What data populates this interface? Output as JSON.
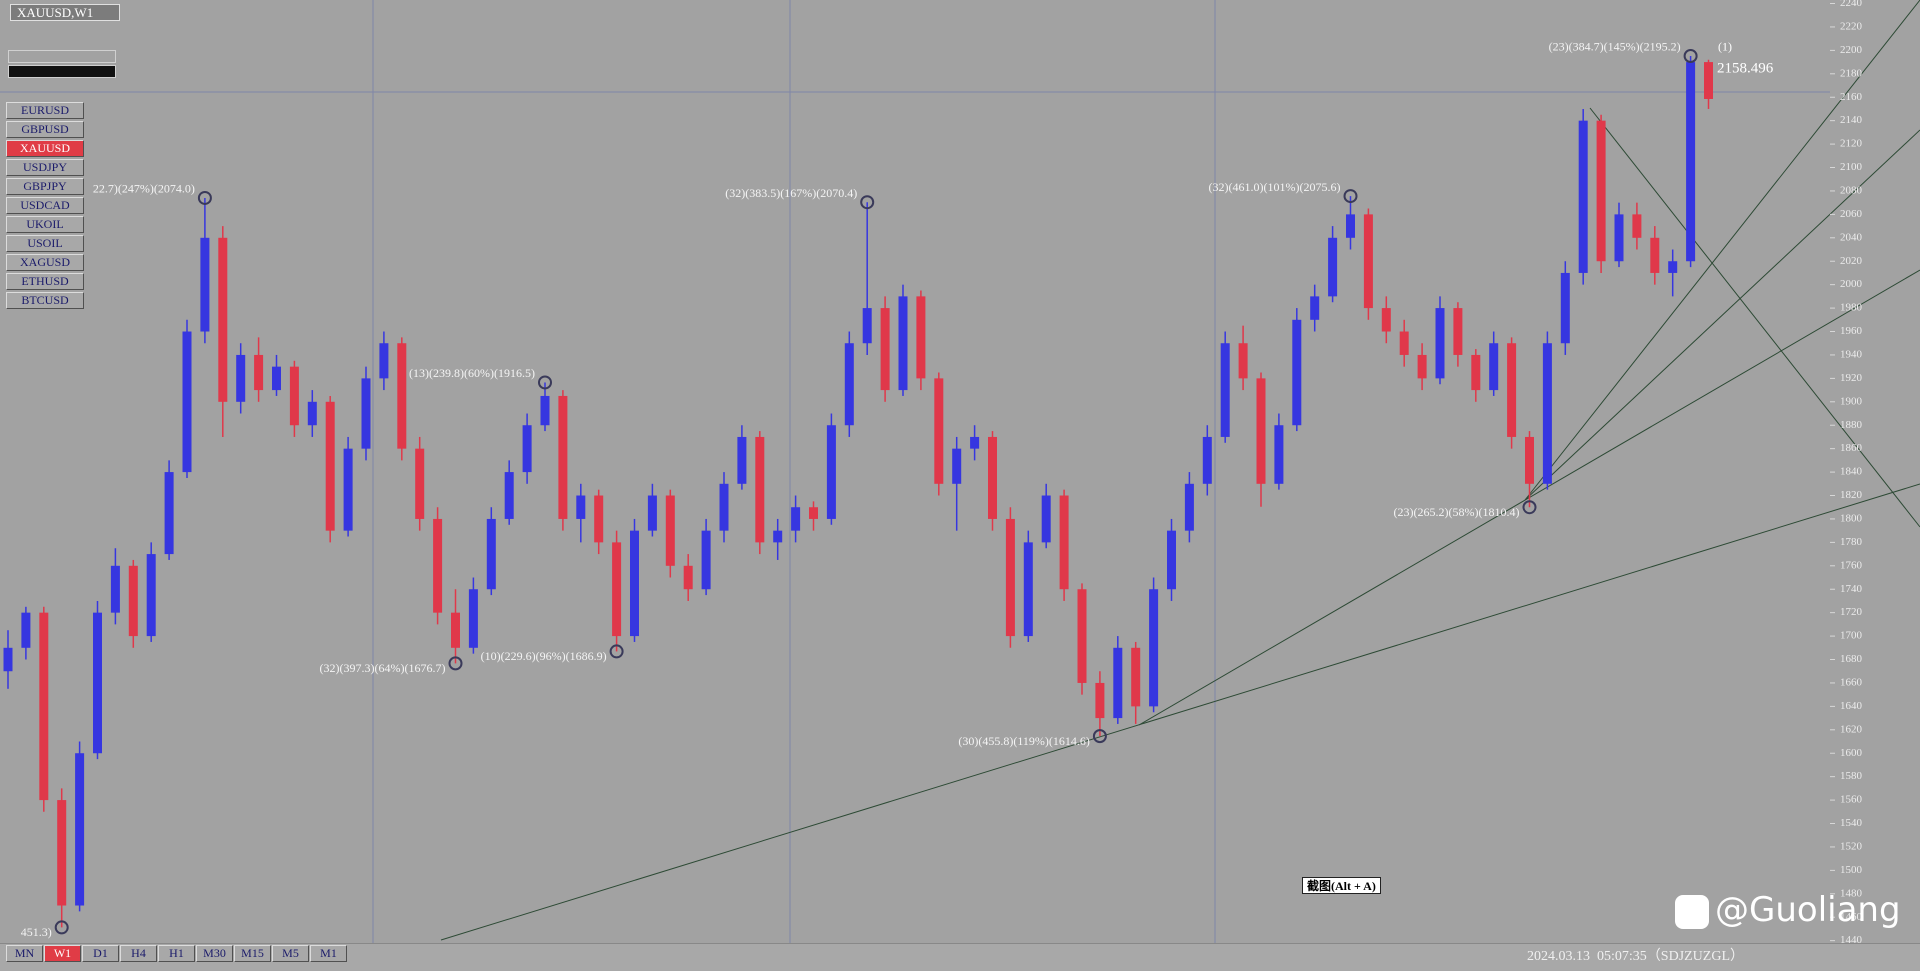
{
  "window": {
    "title": "XAUUSD,W1"
  },
  "symbols": [
    "EURUSD",
    "GBPUSD",
    "XAUUSD",
    "USDJPY",
    "GBPJPY",
    "USDCAD",
    "UKOIL",
    "USOIL",
    "XAGUSD",
    "ETHUSD",
    "BTCUSD"
  ],
  "timeframes": [
    "MN",
    "W1",
    "D1",
    "H4",
    "H1",
    "M30",
    "M15",
    "M5",
    "M1"
  ],
  "chart_data": {
    "type": "candlestick",
    "up_color": "#3636e0",
    "down_color": "#e0384a",
    "ylim": [
      1438,
      2243
    ],
    "yticks": [
      1440,
      1460,
      1480,
      1500,
      1520,
      1540,
      1560,
      1580,
      1600,
      1620,
      1640,
      1660,
      1680,
      1700,
      1720,
      1740,
      1760,
      1780,
      1800,
      1820,
      1840,
      1860,
      1880,
      1900,
      1920,
      1940,
      1960,
      1980,
      2000,
      2020,
      2040,
      2060,
      2080,
      2100,
      2120,
      2140,
      2160,
      2180,
      2200,
      2220,
      2240
    ],
    "candles": [
      [
        1670,
        1705,
        1655,
        1690
      ],
      [
        1690,
        1725,
        1680,
        1720
      ],
      [
        1720,
        1725,
        1550,
        1560
      ],
      [
        1560,
        1570,
        1451.3,
        1470
      ],
      [
        1470,
        1610,
        1465,
        1600
      ],
      [
        1600,
        1730,
        1595,
        1720
      ],
      [
        1720,
        1775,
        1710,
        1760
      ],
      [
        1760,
        1765,
        1690,
        1700
      ],
      [
        1700,
        1780,
        1695,
        1770
      ],
      [
        1770,
        1850,
        1765,
        1840
      ],
      [
        1840,
        1970,
        1835,
        1960
      ],
      [
        1960,
        2074,
        1950,
        2040
      ],
      [
        2040,
        2050,
        1870,
        1900
      ],
      [
        1900,
        1950,
        1890,
        1940
      ],
      [
        1940,
        1955,
        1900,
        1910
      ],
      [
        1910,
        1940,
        1905,
        1930
      ],
      [
        1930,
        1935,
        1870,
        1880
      ],
      [
        1880,
        1910,
        1870,
        1900
      ],
      [
        1900,
        1905,
        1780,
        1790
      ],
      [
        1790,
        1870,
        1785,
        1860
      ],
      [
        1860,
        1930,
        1850,
        1920
      ],
      [
        1920,
        1960,
        1910,
        1950
      ],
      [
        1950,
        1955,
        1850,
        1860
      ],
      [
        1860,
        1870,
        1790,
        1800
      ],
      [
        1800,
        1810,
        1710,
        1720
      ],
      [
        1720,
        1740,
        1676.7,
        1690
      ],
      [
        1690,
        1750,
        1685,
        1740
      ],
      [
        1740,
        1810,
        1735,
        1800
      ],
      [
        1800,
        1850,
        1795,
        1840
      ],
      [
        1840,
        1890,
        1830,
        1880
      ],
      [
        1880,
        1916.5,
        1875,
        1905
      ],
      [
        1905,
        1910,
        1790,
        1800
      ],
      [
        1800,
        1830,
        1780,
        1820
      ],
      [
        1820,
        1825,
        1770,
        1780
      ],
      [
        1780,
        1790,
        1686.9,
        1700
      ],
      [
        1700,
        1800,
        1695,
        1790
      ],
      [
        1790,
        1830,
        1785,
        1820
      ],
      [
        1820,
        1825,
        1750,
        1760
      ],
      [
        1760,
        1770,
        1730,
        1740
      ],
      [
        1740,
        1800,
        1735,
        1790
      ],
      [
        1790,
        1840,
        1780,
        1830
      ],
      [
        1830,
        1880,
        1825,
        1870
      ],
      [
        1870,
        1875,
        1770,
        1780
      ],
      [
        1780,
        1800,
        1765,
        1790
      ],
      [
        1790,
        1820,
        1780,
        1810
      ],
      [
        1810,
        1815,
        1790,
        1800
      ],
      [
        1800,
        1890,
        1795,
        1880
      ],
      [
        1880,
        1960,
        1870,
        1950
      ],
      [
        1950,
        2070.4,
        1940,
        1980
      ],
      [
        1980,
        1990,
        1900,
        1910
      ],
      [
        1910,
        2000,
        1905,
        1990
      ],
      [
        1990,
        1995,
        1910,
        1920
      ],
      [
        1920,
        1925,
        1820,
        1830
      ],
      [
        1830,
        1870,
        1790,
        1860
      ],
      [
        1860,
        1880,
        1850,
        1870
      ],
      [
        1870,
        1875,
        1790,
        1800
      ],
      [
        1800,
        1810,
        1690,
        1700
      ],
      [
        1700,
        1790,
        1695,
        1780
      ],
      [
        1780,
        1830,
        1775,
        1820
      ],
      [
        1820,
        1825,
        1730,
        1740
      ],
      [
        1740,
        1745,
        1650,
        1660
      ],
      [
        1660,
        1670,
        1614.6,
        1630
      ],
      [
        1630,
        1700,
        1625,
        1690
      ],
      [
        1690,
        1695,
        1625,
        1640
      ],
      [
        1640,
        1750,
        1635,
        1740
      ],
      [
        1740,
        1800,
        1730,
        1790
      ],
      [
        1790,
        1840,
        1780,
        1830
      ],
      [
        1830,
        1880,
        1820,
        1870
      ],
      [
        1870,
        1960,
        1865,
        1950
      ],
      [
        1950,
        1965,
        1910,
        1920
      ],
      [
        1920,
        1925,
        1810.4,
        1830
      ],
      [
        1830,
        1890,
        1825,
        1880
      ],
      [
        1880,
        1980,
        1875,
        1970
      ],
      [
        1970,
        2000,
        1960,
        1990
      ],
      [
        1990,
        2050,
        1985,
        2040
      ],
      [
        2040,
        2075.6,
        2030,
        2060
      ],
      [
        2060,
        2065,
        1970,
        1980
      ],
      [
        1980,
        1990,
        1950,
        1960
      ],
      [
        1960,
        1970,
        1930,
        1940
      ],
      [
        1940,
        1950,
        1910,
        1920
      ],
      [
        1920,
        1990,
        1915,
        1980
      ],
      [
        1980,
        1985,
        1930,
        1940
      ],
      [
        1940,
        1945,
        1900,
        1910
      ],
      [
        1910,
        1960,
        1905,
        1950
      ],
      [
        1950,
        1955,
        1860,
        1870
      ],
      [
        1870,
        1875,
        1810,
        1830
      ],
      [
        1830,
        1960,
        1825,
        1950
      ],
      [
        1950,
        2020,
        1940,
        2010
      ],
      [
        2010,
        2150,
        2000,
        2140
      ],
      [
        2140,
        2145,
        2010,
        2020
      ],
      [
        2020,
        2070,
        2015,
        2060
      ],
      [
        2060,
        2070,
        2030,
        2040
      ],
      [
        2040,
        2050,
        2000,
        2010
      ],
      [
        2010,
        2030,
        1990,
        2020
      ],
      [
        2020,
        2195.2,
        2015,
        2190
      ],
      [
        2190,
        2192,
        2150,
        2158.496
      ]
    ],
    "last_price": 2158.496,
    "last_count": "(1)",
    "annotations": [
      "22.7)(247%)(2074.0)",
      "(32)(383.5)(167%)(2070.4)",
      "(32)(461.0)(101%)(2075.6)",
      "(23)(384.7)(145%)(2195.2)",
      "(13)(239.8)(60%)(1916.5)",
      "(32)(397.3)(64%)(1676.7)",
      "(10)(229.6)(96%)(1686.9)",
      "(30)(455.8)(119%)(1614.6)",
      "(23)(265.2)(58%)(1810.4)",
      "451.3)"
    ]
  },
  "status": {
    "datetime": "2024.03.13  05:07:35（SDJZUZGL）"
  },
  "screenshot_button": "截图(Alt + A)",
  "watermark": "@Guoliang"
}
